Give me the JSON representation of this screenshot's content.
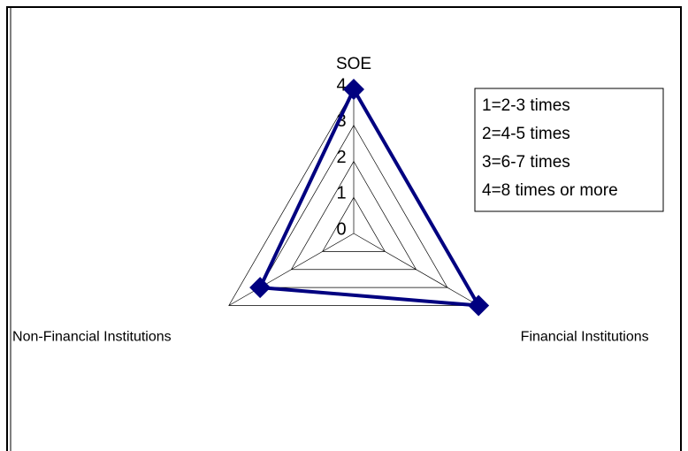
{
  "chart_data": {
    "type": "radar",
    "categories": [
      "SOE",
      "Financial Institutions",
      "Non-Financial Institutions"
    ],
    "values": [
      4,
      4,
      3
    ],
    "color": "#000080",
    "rlim": [
      0,
      4
    ],
    "rticks": [
      0,
      1,
      2,
      3,
      4
    ],
    "legend_notes": [
      "1=2-3 times",
      "2=4-5 times",
      "3=6-7 times",
      "4=8 times or more"
    ]
  }
}
